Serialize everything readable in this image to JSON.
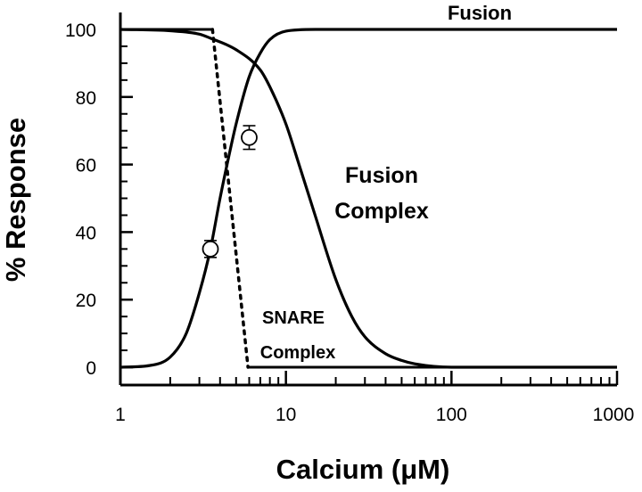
{
  "chart_data": {
    "type": "line",
    "title": "",
    "xlabel": "Calcium (μM)",
    "ylabel": "% Response",
    "x_scale": "log",
    "xlim": [
      1,
      1000
    ],
    "ylim": [
      0,
      100
    ],
    "x_ticks": [
      1,
      10,
      100,
      1000
    ],
    "x_tick_labels": [
      "1",
      "10",
      "100",
      "1000"
    ],
    "y_ticks": [
      0,
      20,
      40,
      60,
      80,
      100
    ],
    "y_tick_labels": [
      "0",
      "20",
      "40",
      "60",
      "80",
      "100"
    ],
    "grid": false,
    "legend": "none",
    "series": [
      {
        "name": "Fusion",
        "style": "solid",
        "x": [
          1,
          1.5,
          2,
          2.5,
          3,
          3.5,
          4,
          4.5,
          5,
          6,
          7,
          8,
          10,
          15,
          20,
          50,
          100,
          1000
        ],
        "y": [
          0,
          0.5,
          3,
          10,
          22,
          35,
          50,
          62,
          72,
          86,
          93,
          97,
          99.5,
          100,
          100,
          100,
          100,
          100
        ]
      },
      {
        "name": "Fusion Complex",
        "style": "solid",
        "x": [
          1,
          2,
          3,
          3.5,
          5,
          7,
          8,
          10,
          12,
          15,
          20,
          25,
          30,
          40,
          50,
          60,
          100,
          1000
        ],
        "y": [
          100,
          99.6,
          98.6,
          97.4,
          94,
          88,
          83,
          72,
          60,
          45,
          26,
          15,
          9,
          4,
          2,
          1,
          0,
          0
        ]
      },
      {
        "name": "SNARE Complex",
        "style": "dotted",
        "x": [
          1,
          3.6,
          5.9,
          1000
        ],
        "y": [
          100,
          100,
          0,
          0
        ]
      }
    ],
    "data_points": [
      {
        "x": 3.5,
        "y": 35,
        "err": 2.5
      },
      {
        "x": 6,
        "y": 68,
        "err": 3.5
      }
    ],
    "annotations": [
      {
        "lines": [
          "Fusion"
        ]
      },
      {
        "lines": [
          "Fusion",
          "Complex"
        ]
      },
      {
        "lines": [
          "SNARE",
          "Complex"
        ]
      }
    ]
  }
}
